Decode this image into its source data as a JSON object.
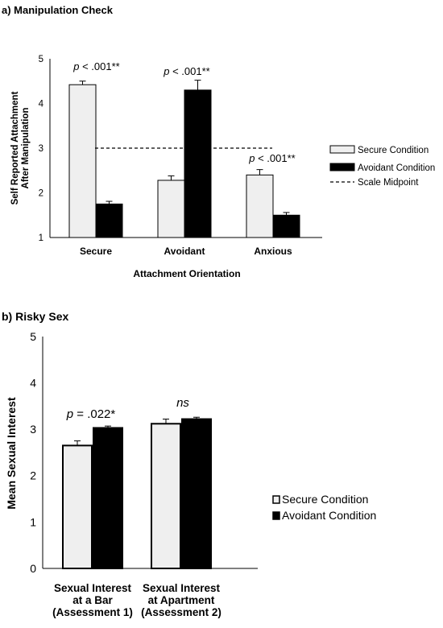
{
  "chart_data": [
    {
      "type": "bar",
      "title": "a) Manipulation Check",
      "xlabel": "Attachment Orientation",
      "ylabel_lines": [
        "Self Reported Attachment",
        "After Manipulation"
      ],
      "ylim": [
        1,
        5
      ],
      "yticks": [
        1,
        2,
        3,
        4,
        5
      ],
      "categories": [
        "Secure",
        "Avoidant",
        "Anxious"
      ],
      "series": [
        {
          "name": "Secure Condition",
          "values": [
            4.42,
            2.28,
            2.4
          ],
          "errors": [
            0.08,
            0.1,
            0.12
          ],
          "color": "#efefef"
        },
        {
          "name": "Avoidant Condition",
          "values": [
            1.75,
            4.3,
            1.5
          ],
          "errors": [
            0.06,
            0.22,
            0.06
          ],
          "color": "#000000"
        }
      ],
      "reference_line": {
        "name": "Scale Midpoint",
        "value": 3
      },
      "annotations": [
        {
          "category": "Secure",
          "p_label": "p",
          "rest": " < .001**"
        },
        {
          "category": "Avoidant",
          "p_label": "p",
          "rest": " < .001**"
        },
        {
          "category": "Anxious",
          "p_label": "p",
          "rest": " < .001**"
        }
      ],
      "legend_position": "right"
    },
    {
      "type": "bar",
      "title": "b) Risky Sex",
      "xlabel": "",
      "ylabel": "Mean Sexual Interest",
      "ylim": [
        0,
        5
      ],
      "yticks": [
        0,
        1,
        2,
        3,
        4,
        5
      ],
      "categories": [
        [
          "Sexual Interest",
          "at a Bar",
          "(Assessment 1)"
        ],
        [
          "Sexual Interest",
          "at Apartment",
          "(Assessment 2)"
        ]
      ],
      "series": [
        {
          "name": "Secure Condition",
          "values": [
            2.65,
            3.12
          ],
          "errors": [
            0.1,
            0.1
          ],
          "color": "#efefef"
        },
        {
          "name": "Avoidant Condition",
          "values": [
            3.03,
            3.22
          ],
          "errors": [
            0.04,
            0.04
          ],
          "color": "#000000"
        }
      ],
      "annotations": [
        {
          "category": "Sexual Interest at a Bar",
          "p_label": "p",
          "rest": " = .022*"
        },
        {
          "category": "Sexual Interest at Apartment",
          "p_label": "ns",
          "rest": ""
        }
      ],
      "legend_position": "right"
    }
  ]
}
